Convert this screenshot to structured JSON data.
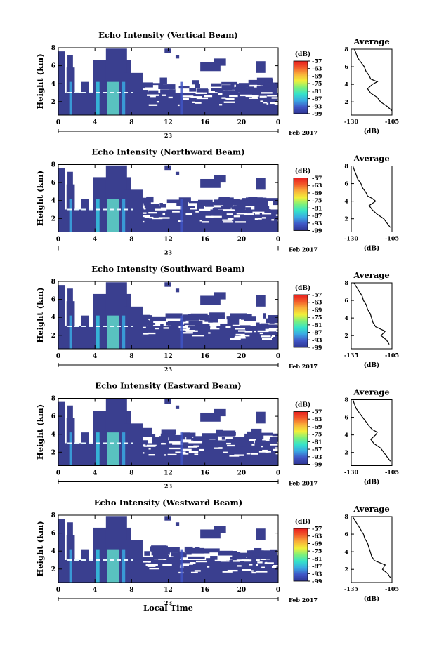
{
  "colors": {
    "background_echo": "#3a3f8f",
    "colorbar_stops": [
      "#2f3592",
      "#3f55c5",
      "#3aa9e3",
      "#35e3c9",
      "#7ef07a",
      "#f2ef3a",
      "#f9b03a",
      "#f25a2a",
      "#e81e1e"
    ]
  },
  "shared": {
    "time_ticks": [
      "0",
      "4",
      "8",
      "12",
      "16",
      "20",
      "0"
    ],
    "date_label": "23",
    "month_label": "Feb 2017",
    "colorbar_unit": "(dB)",
    "colorbar_ticks": [
      "-57",
      "-63",
      "-69",
      "-75",
      "-81",
      "-87",
      "-93",
      "-99"
    ],
    "ylabel": "Height (km)",
    "height_ticks": [
      "2",
      "4",
      "6",
      "8"
    ],
    "avg_title": "Average",
    "avg_xlabel": "(dB)",
    "local_time_label": "Local Time"
  },
  "chart_data": [
    {
      "type": "heatmap",
      "title": "Echo Intensity (Vertical Beam)",
      "ylabel": "Height (km)",
      "xlabel": "",
      "ylim": [
        0.5,
        8
      ],
      "xlim": [
        0,
        24
      ],
      "avg_profile": {
        "xlim": [
          -130,
          -105
        ],
        "x_ticks": [
          "-130",
          "-105"
        ],
        "heights": [
          1,
          1.5,
          2,
          2.5,
          3,
          3.5,
          4,
          4.3,
          4.6,
          5,
          5.5,
          6,
          6.5,
          7,
          7.5,
          8
        ],
        "values": [
          -105,
          -108,
          -112,
          -114,
          -118,
          -120,
          -117,
          -114,
          -118,
          -119,
          -121,
          -122,
          -124,
          -126,
          -127,
          -128
        ]
      }
    },
    {
      "type": "heatmap",
      "title": "Echo Intensity (Northward Beam)",
      "ylabel": "Height (km)",
      "xlabel": "",
      "ylim": [
        0.5,
        8
      ],
      "xlim": [
        0,
        24
      ],
      "avg_profile": {
        "xlim": [
          -130,
          -105
        ],
        "x_ticks": [
          "-130",
          "-105"
        ],
        "heights": [
          1,
          1.5,
          2,
          2.5,
          3,
          3.5,
          4,
          4.3,
          4.6,
          5,
          5.5,
          6,
          6.5,
          7,
          7.5,
          8
        ],
        "values": [
          -106,
          -108,
          -110,
          -114,
          -117,
          -119,
          -115,
          -117,
          -120,
          -121,
          -123,
          -124,
          -126,
          -127,
          -128,
          -129
        ]
      }
    },
    {
      "type": "heatmap",
      "title": "Echo Intensity (Southward Beam)",
      "ylabel": "Height (km)",
      "xlabel": "",
      "ylim": [
        0.5,
        8
      ],
      "xlim": [
        0,
        24
      ],
      "avg_profile": {
        "xlim": [
          -135,
          -105
        ],
        "x_ticks": [
          "-135",
          "-105"
        ],
        "heights": [
          1,
          1.5,
          2,
          2.5,
          3,
          3.5,
          4,
          4.5,
          5,
          5.5,
          6,
          6.5,
          7,
          7.5,
          8
        ],
        "values": [
          -107,
          -109,
          -113,
          -110,
          -117,
          -119,
          -120,
          -121,
          -123,
          -124,
          -126,
          -127,
          -129,
          -131,
          -133
        ]
      }
    },
    {
      "type": "heatmap",
      "title": "Echo Intensity (Eastward Beam)",
      "ylabel": "Height (km)",
      "xlabel": "",
      "ylim": [
        0.5,
        8
      ],
      "xlim": [
        0,
        24
      ],
      "avg_profile": {
        "xlim": [
          -130,
          -105
        ],
        "x_ticks": [
          "-130",
          "-105"
        ],
        "heights": [
          1,
          1.5,
          2,
          2.5,
          3,
          3.5,
          4,
          4.3,
          4.6,
          5,
          5.5,
          6,
          6.5,
          7,
          7.5,
          8
        ],
        "values": [
          -106,
          -108,
          -110,
          -112,
          -116,
          -118,
          -115,
          -114,
          -117,
          -119,
          -121,
          -123,
          -125,
          -127,
          -128,
          -129
        ]
      }
    },
    {
      "type": "heatmap",
      "title": "Echo Intensity (Westward Beam)",
      "ylabel": "Height (km)",
      "xlabel": "Local Time",
      "ylim": [
        0.5,
        8
      ],
      "xlim": [
        0,
        24
      ],
      "avg_profile": {
        "xlim": [
          -135,
          -105
        ],
        "x_ticks": [
          "-135",
          "-105"
        ],
        "heights": [
          1,
          1.5,
          2,
          2.5,
          3,
          3.5,
          4,
          4.5,
          5,
          5.5,
          6,
          6.5,
          7,
          7.5,
          8
        ],
        "values": [
          -106,
          -108,
          -112,
          -110,
          -118,
          -120,
          -121,
          -122,
          -123,
          -125,
          -126,
          -128,
          -130,
          -132,
          -134
        ]
      }
    }
  ]
}
